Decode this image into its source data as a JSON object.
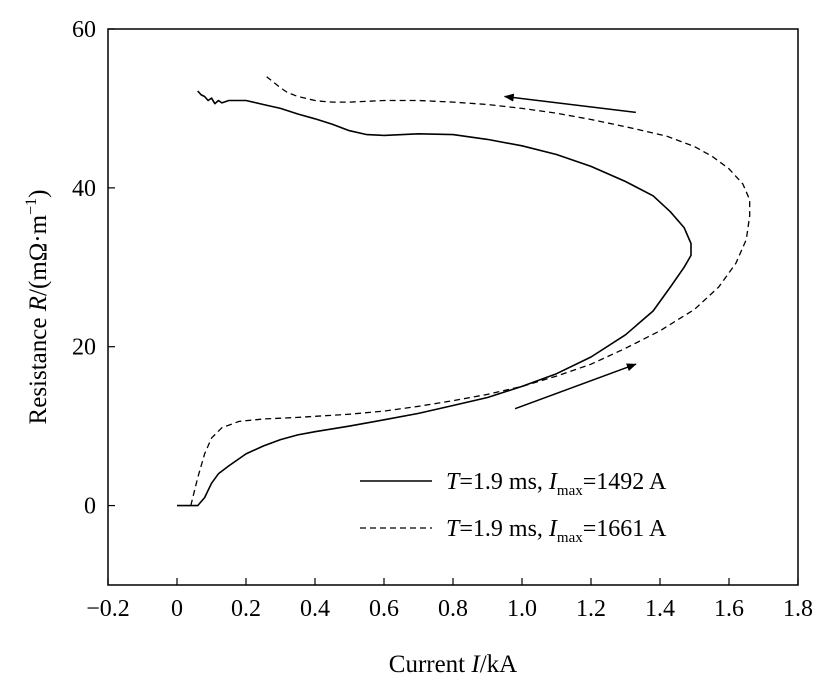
{
  "chart_data": {
    "type": "line",
    "xlabel": {
      "prefix": "Current ",
      "var": "I",
      "suffix": "/kA"
    },
    "ylabel": {
      "prefix": "Resistance ",
      "var": "R",
      "unit_open": "/(m",
      "omega": "Ω",
      "dot": "·",
      "m": "m",
      "sup": "−1",
      "unit_close": ")"
    },
    "xlim": [
      -0.2,
      1.8
    ],
    "ylim": [
      -10,
      60
    ],
    "x_ticks": [
      -0.2,
      0,
      0.2,
      0.4,
      0.6,
      0.8,
      1.0,
      1.2,
      1.4,
      1.6,
      1.8
    ],
    "x_tick_labels": [
      "−0.2",
      "0",
      "0.2",
      "0.4",
      "0.6",
      "0.8",
      "1.0",
      "1.2",
      "1.4",
      "1.6",
      "1.8"
    ],
    "y_ticks": [
      0,
      20,
      40,
      60
    ],
    "y_tick_labels": [
      "0",
      "20",
      "40",
      "60"
    ],
    "grid": false,
    "legend_position": "lower-right",
    "series": [
      {
        "name": "T=1.9 ms, Imax=1492 A",
        "legend": {
          "t": "T",
          "t_rest": "=1.9 ms, ",
          "i": "I",
          "sub": "max",
          "rest": "=1492 A"
        },
        "style": "solid",
        "color": "#000000",
        "x": [
          0.0,
          0.06,
          0.08,
          0.1,
          0.12,
          0.15,
          0.2,
          0.25,
          0.3,
          0.35,
          0.4,
          0.5,
          0.6,
          0.7,
          0.8,
          0.9,
          1.0,
          1.1,
          1.2,
          1.3,
          1.38,
          1.43,
          1.47,
          1.49,
          1.49,
          1.47,
          1.43,
          1.38,
          1.3,
          1.2,
          1.1,
          1.0,
          0.9,
          0.8,
          0.7,
          0.6,
          0.55,
          0.5,
          0.45,
          0.4,
          0.35,
          0.3,
          0.25,
          0.2,
          0.18,
          0.15,
          0.13,
          0.12,
          0.11,
          0.1,
          0.09,
          0.08,
          0.07,
          0.06
        ],
        "y": [
          0.0,
          0.0,
          1.0,
          2.8,
          4.0,
          5.0,
          6.5,
          7.5,
          8.3,
          8.9,
          9.3,
          10.0,
          10.8,
          11.6,
          12.6,
          13.6,
          15.0,
          16.6,
          18.7,
          21.5,
          24.5,
          27.5,
          30.0,
          31.5,
          33.0,
          35.0,
          37.0,
          39.0,
          40.8,
          42.7,
          44.2,
          45.3,
          46.1,
          46.7,
          46.8,
          46.6,
          46.7,
          47.2,
          48.0,
          48.7,
          49.3,
          50.0,
          50.5,
          51.0,
          51.0,
          51.0,
          50.7,
          51.0,
          50.6,
          51.3,
          51.0,
          51.5,
          51.7,
          52.2
        ]
      },
      {
        "name": "T=1.9 ms, Imax=1661 A",
        "legend": {
          "t": "T",
          "t_rest": "=1.9 ms, ",
          "i": "I",
          "sub": "max",
          "rest": "=1661 A"
        },
        "style": "dashed",
        "color": "#000000",
        "x": [
          0.04,
          0.06,
          0.08,
          0.1,
          0.13,
          0.18,
          0.25,
          0.35,
          0.5,
          0.6,
          0.7,
          0.8,
          0.9,
          1.0,
          1.1,
          1.2,
          1.3,
          1.4,
          1.5,
          1.57,
          1.62,
          1.65,
          1.66,
          1.66,
          1.64,
          1.6,
          1.55,
          1.5,
          1.42,
          1.3,
          1.2,
          1.1,
          1.0,
          0.9,
          0.8,
          0.7,
          0.6,
          0.5,
          0.45,
          0.42,
          0.4,
          0.38,
          0.35,
          0.32,
          0.3,
          0.28,
          0.26
        ],
        "y": [
          0.0,
          3.5,
          6.5,
          8.5,
          9.8,
          10.6,
          10.9,
          11.1,
          11.5,
          11.9,
          12.5,
          13.2,
          14.0,
          15.0,
          16.3,
          17.8,
          19.8,
          22.0,
          24.7,
          27.5,
          30.5,
          33.5,
          36.5,
          38.5,
          40.5,
          42.4,
          44.0,
          45.2,
          46.5,
          47.7,
          48.6,
          49.4,
          50.0,
          50.5,
          50.8,
          51.0,
          51.0,
          50.8,
          50.8,
          50.9,
          51.0,
          51.2,
          51.5,
          52.0,
          52.6,
          53.3,
          54.0
        ]
      }
    ],
    "annotations": [
      {
        "name": "arrow-leftward",
        "from": [
          1.33,
          49.5
        ],
        "to": [
          0.95,
          51.5
        ]
      },
      {
        "name": "arrow-rightward",
        "from": [
          0.98,
          12.2
        ],
        "to": [
          1.33,
          17.8
        ]
      }
    ]
  }
}
